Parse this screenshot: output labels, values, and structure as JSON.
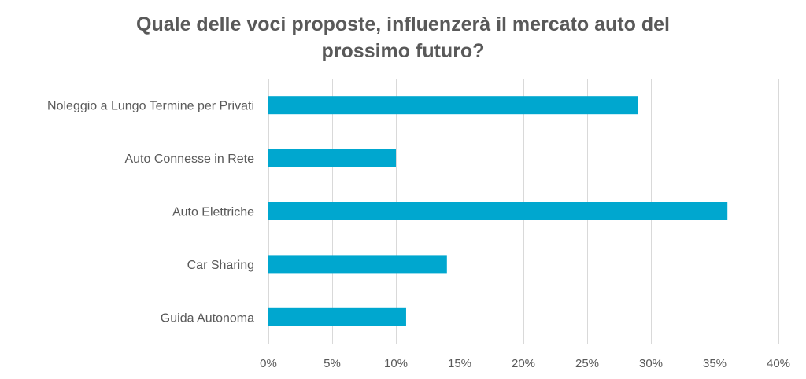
{
  "chart_data": {
    "type": "bar",
    "orientation": "horizontal",
    "title_lines": [
      "Quale delle voci proposte, influenzerà il mercato auto del",
      "prossimo futuro?"
    ],
    "categories": [
      "Noleggio a Lungo Termine per Privati",
      "Auto Connesse in Rete",
      "Auto Elettriche",
      "Car Sharing",
      "Guida Autonoma"
    ],
    "values": [
      29,
      10,
      36,
      14,
      10.8
    ],
    "xlim": [
      0,
      40
    ],
    "x_ticks": [
      0,
      5,
      10,
      15,
      20,
      25,
      30,
      35,
      40
    ],
    "x_tick_labels": [
      "0%",
      "5%",
      "10%",
      "15%",
      "20%",
      "25%",
      "30%",
      "35%",
      "40%"
    ],
    "xlabel": "",
    "ylabel": "",
    "grid": true,
    "legend": "none",
    "bar_color": "#00a7cf",
    "grid_color": "#d9d9d9",
    "text_color": "#595959"
  }
}
